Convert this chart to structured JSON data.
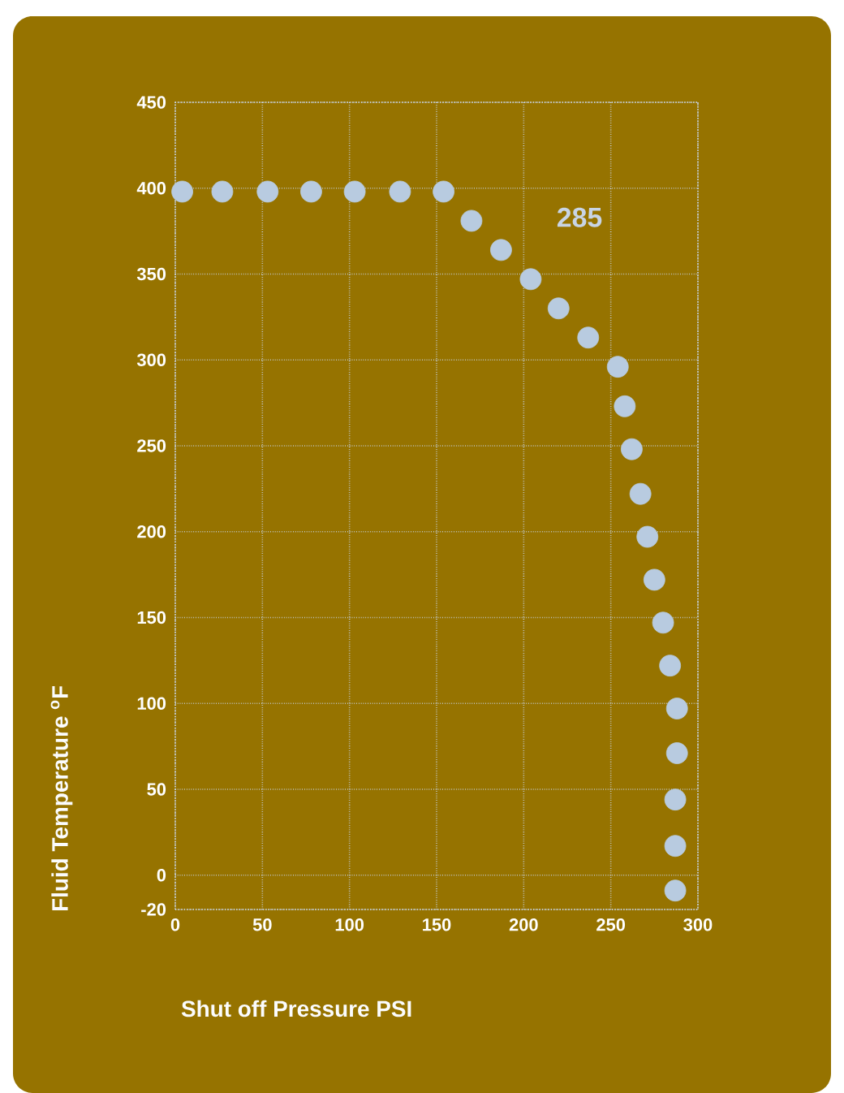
{
  "chart_data": {
    "type": "scatter",
    "xlabel": "Shut off Pressure PSI",
    "ylabel": "Fluid Temperature $^{o}$F",
    "annotations": [
      "285"
    ],
    "xlim": [
      0,
      300
    ],
    "ylim": [
      -20,
      450
    ],
    "xticks": [
      0,
      50,
      100,
      150,
      200,
      250,
      300
    ],
    "yticks": [
      -20,
      0,
      50,
      100,
      150,
      200,
      250,
      300,
      350,
      400,
      450
    ],
    "grid": true,
    "marker": "circle",
    "series": [
      {
        "color": "#b8cbe0",
        "x": [
          4,
          27,
          53,
          78,
          103,
          129,
          154,
          170,
          187,
          204,
          220,
          237,
          254,
          258,
          262,
          267,
          271,
          275,
          280,
          284,
          288,
          288,
          287,
          287,
          287
        ],
        "values": [
          398,
          398,
          398,
          398,
          398,
          398,
          398,
          381,
          364,
          347,
          330,
          313,
          296,
          273,
          248,
          222,
          197,
          172,
          147,
          122,
          97,
          71,
          44,
          17,
          -9
        ]
      }
    ]
  }
}
